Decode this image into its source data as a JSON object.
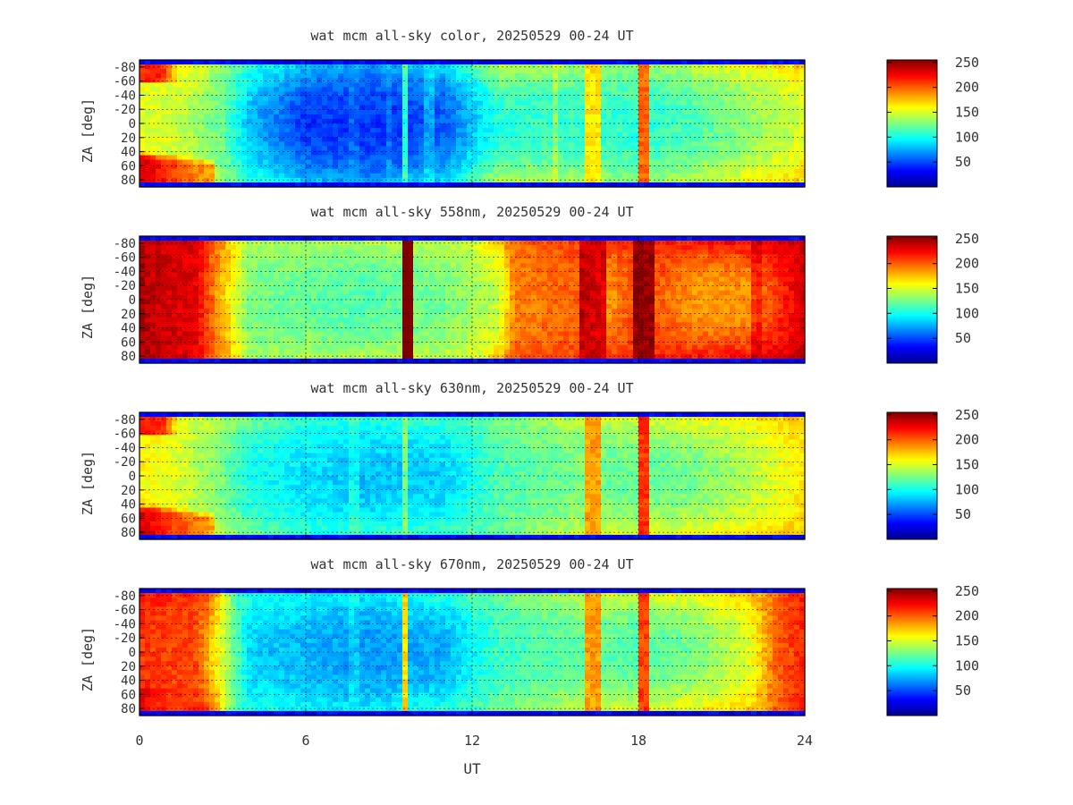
{
  "figure": {
    "xlabel": "UT",
    "ylabel": "ZA [deg]"
  },
  "chart_data": [
    {
      "type": "heatmap",
      "title": "wat mcm all-sky color, 20250529 00-24 UT",
      "x_range": [
        0,
        24
      ],
      "y_range": [
        -90,
        90
      ],
      "x_ticks": [
        "0",
        "6",
        "12",
        "18",
        "24"
      ],
      "y_ticks": [
        "-80",
        "-60",
        "-40",
        "-20",
        "0",
        "20",
        "40",
        "60",
        "80"
      ],
      "grid": true,
      "colorbar": {
        "range": [
          0,
          255
        ],
        "ticks": [
          "50",
          "100",
          "150",
          "200",
          "250"
        ],
        "colormap": "jet"
      },
      "profile": {
        "bg": [
          [
            0,
            150
          ],
          [
            1.5,
            145
          ],
          [
            3,
            120
          ],
          [
            4,
            80
          ],
          [
            6,
            45
          ],
          [
            9,
            45
          ],
          [
            11,
            55
          ],
          [
            12,
            80
          ],
          [
            13,
            105
          ],
          [
            16,
            110
          ],
          [
            18,
            105
          ],
          [
            20,
            115
          ],
          [
            22,
            130
          ],
          [
            24,
            150
          ]
        ],
        "edges": [
          [
            0,
            175
          ],
          [
            2,
            160
          ],
          [
            4,
            110
          ],
          [
            8,
            75
          ],
          [
            11,
            95
          ],
          [
            13,
            150
          ],
          [
            18,
            135
          ],
          [
            22,
            165
          ],
          [
            24,
            175
          ]
        ],
        "bands": [
          [
            7.6,
            7.8,
            10,
            0.5
          ],
          [
            8.9,
            9.1,
            12,
            0.5
          ],
          [
            9.45,
            9.6,
            55,
            0.4
          ],
          [
            10.4,
            10.6,
            20,
            0.6
          ],
          [
            16.2,
            16.5,
            55,
            0.5
          ],
          [
            18.0,
            18.3,
            95,
            0.4
          ],
          [
            14.9,
            15.1,
            20,
            0.5
          ]
        ],
        "blob_a": [
          2.8,
          70,
          235,
          0.72
        ],
        "blob_b": [
          2.8,
          0,
          0,
          0.6
        ]
      }
    },
    {
      "type": "heatmap",
      "title": "wat mcm all-sky 558nm, 20250529 00-24 UT",
      "x_range": [
        0,
        24
      ],
      "y_range": [
        -90,
        90
      ],
      "x_ticks": [
        "0",
        "6",
        "12",
        "18",
        "24"
      ],
      "y_ticks": [
        "-80",
        "-60",
        "-40",
        "-20",
        "0",
        "20",
        "40",
        "60",
        "80"
      ],
      "grid": true,
      "colorbar": {
        "range": [
          0,
          255
        ],
        "ticks": [
          "50",
          "100",
          "150",
          "200",
          "250"
        ],
        "colormap": "jet"
      },
      "profile": {
        "bg": [
          [
            0,
            240
          ],
          [
            2,
            230
          ],
          [
            3,
            175
          ],
          [
            4,
            125
          ],
          [
            8,
            115
          ],
          [
            11,
            125
          ],
          [
            13,
            145
          ],
          [
            13.5,
            190
          ],
          [
            16,
            200
          ],
          [
            17,
            185
          ],
          [
            18,
            210
          ],
          [
            20,
            185
          ],
          [
            22,
            185
          ],
          [
            24,
            235
          ]
        ],
        "edges": [
          [
            0,
            240
          ],
          [
            2,
            230
          ],
          [
            3,
            190
          ],
          [
            4,
            140
          ],
          [
            12,
            150
          ],
          [
            13.5,
            200
          ],
          [
            24,
            240
          ]
        ],
        "bands": [
          [
            9.55,
            9.85,
            250,
            0.3
          ],
          [
            13.4,
            13.6,
            -40,
            0.6
          ],
          [
            16.0,
            16.8,
            40,
            0.4
          ],
          [
            17.8,
            18.6,
            45,
            0.4
          ],
          [
            22.2,
            22.4,
            20,
            0.6
          ]
        ],
        "blob_a": [
          2.5,
          70,
          250,
          0.5
        ],
        "blob_b": [
          2.5,
          30,
          250,
          0.4
        ]
      }
    },
    {
      "type": "heatmap",
      "title": "wat mcm all-sky 630nm, 20250529 00-24 UT",
      "x_range": [
        0,
        24
      ],
      "y_range": [
        -90,
        90
      ],
      "x_ticks": [
        "0",
        "6",
        "12",
        "18",
        "24"
      ],
      "y_ticks": [
        "-80",
        "-60",
        "-40",
        "-20",
        "0",
        "20",
        "40",
        "60",
        "80"
      ],
      "grid": true,
      "colorbar": {
        "range": [
          0,
          255
        ],
        "ticks": [
          "50",
          "100",
          "150",
          "200",
          "250"
        ],
        "colormap": "jet"
      },
      "profile": {
        "bg": [
          [
            0,
            160
          ],
          [
            1.5,
            150
          ],
          [
            3,
            125
          ],
          [
            4,
            100
          ],
          [
            8,
            80
          ],
          [
            11,
            85
          ],
          [
            12,
            100
          ],
          [
            13,
            115
          ],
          [
            16,
            125
          ],
          [
            18,
            120
          ],
          [
            20,
            125
          ],
          [
            22,
            140
          ],
          [
            24,
            165
          ]
        ],
        "edges": [
          [
            0,
            175
          ],
          [
            3,
            140
          ],
          [
            6,
            110
          ],
          [
            12,
            120
          ],
          [
            16,
            150
          ],
          [
            24,
            175
          ]
        ],
        "bands": [
          [
            7.6,
            7.8,
            15,
            0.5
          ],
          [
            9.45,
            9.6,
            40,
            0.4
          ],
          [
            16.2,
            16.6,
            60,
            0.5
          ],
          [
            18.0,
            18.3,
            90,
            0.4
          ]
        ],
        "blob_a": [
          2.8,
          70,
          235,
          0.72
        ],
        "blob_b": [
          2.8,
          0,
          0,
          0.6
        ]
      }
    },
    {
      "type": "heatmap",
      "title": "wat mcm all-sky 670nm, 20250529 00-24 UT",
      "x_range": [
        0,
        24
      ],
      "y_range": [
        -90,
        90
      ],
      "x_ticks": [
        "0",
        "6",
        "12",
        "18",
        "24"
      ],
      "y_ticks": [
        "-80",
        "-60",
        "-40",
        "-20",
        "0",
        "20",
        "40",
        "60",
        "80"
      ],
      "grid": true,
      "colorbar": {
        "range": [
          0,
          255
        ],
        "ticks": [
          "50",
          "100",
          "150",
          "200",
          "250"
        ],
        "colormap": "jet"
      },
      "profile": {
        "bg": [
          [
            0,
            210
          ],
          [
            2,
            205
          ],
          [
            3,
            150
          ],
          [
            4,
            85
          ],
          [
            8,
            70
          ],
          [
            11,
            75
          ],
          [
            12,
            95
          ],
          [
            13,
            110
          ],
          [
            16,
            120
          ],
          [
            18,
            115
          ],
          [
            20,
            125
          ],
          [
            22,
            150
          ],
          [
            23,
            200
          ],
          [
            24,
            215
          ]
        ],
        "edges": [
          [
            0,
            220
          ],
          [
            2.5,
            210
          ],
          [
            3.5,
            110
          ],
          [
            8,
            95
          ],
          [
            12,
            120
          ],
          [
            16,
            150
          ],
          [
            22,
            175
          ],
          [
            24,
            220
          ]
        ],
        "bands": [
          [
            9.45,
            9.6,
            95,
            0.3
          ],
          [
            7.6,
            7.8,
            12,
            0.5
          ],
          [
            16.2,
            16.5,
            65,
            0.5
          ],
          [
            18.0,
            18.3,
            90,
            0.4
          ]
        ],
        "blob_a": [
          3.0,
          70,
          230,
          0.55
        ],
        "blob_b": [
          3.0,
          30,
          210,
          0.4
        ]
      }
    }
  ]
}
